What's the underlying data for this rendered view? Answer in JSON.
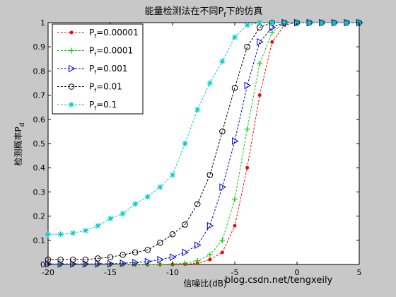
{
  "chart_data": {
    "type": "line",
    "title": "能量检测法在不同Pf下的仿真",
    "title_main": "能量检测法在不同P",
    "title_sub": "f",
    "title_rest": "下的仿真",
    "xlabel": "信噪比(dB)",
    "ylabel_main": "检测概率P",
    "ylabel_sub": "d",
    "xlim": [
      -20,
      5
    ],
    "ylim": [
      0,
      1
    ],
    "xticks": [
      -20,
      -15,
      -10,
      -5,
      0,
      5
    ],
    "yticks": [
      0,
      0.1,
      0.2,
      0.3,
      0.4,
      0.5,
      0.6,
      0.7,
      0.8,
      0.9,
      1
    ],
    "grid": false,
    "legend_position": "top-left",
    "x": [
      -20,
      -19,
      -18,
      -17,
      -16,
      -15,
      -14,
      -13,
      -12,
      -11,
      -10,
      -9,
      -8,
      -7,
      -6,
      -5,
      -4,
      -3,
      -2,
      -1,
      0,
      1,
      2,
      3,
      4,
      5
    ],
    "series": [
      {
        "name": "Pf=0.00001",
        "legend_prefix": "P",
        "legend_sub": "f",
        "legend_value": "=0.00001",
        "color": "#ff0000",
        "marker": "dot",
        "values": [
          0,
          0,
          0,
          0,
          0,
          0,
          0,
          0,
          0,
          0,
          0,
          0.001,
          0.005,
          0.02,
          0.05,
          0.16,
          0.4,
          0.7,
          0.92,
          0.99,
          1,
          1,
          1,
          1,
          1,
          1
        ]
      },
      {
        "name": "Pf=0.0001",
        "legend_prefix": "P",
        "legend_sub": "f",
        "legend_value": "=0.0001",
        "color": "#00cc00",
        "marker": "plus",
        "values": [
          0,
          0,
          0,
          0,
          0,
          0,
          0,
          0,
          0,
          0,
          0.002,
          0.005,
          0.015,
          0.04,
          0.1,
          0.27,
          0.56,
          0.83,
          0.96,
          1,
          1,
          1,
          1,
          1,
          1,
          1
        ]
      },
      {
        "name": "Pf=0.001",
        "legend_prefix": "P",
        "legend_sub": "f",
        "legend_value": "=0.001",
        "color": "#0000cc",
        "marker": "triangle-right",
        "values": [
          0.002,
          0.002,
          0.002,
          0.002,
          0.003,
          0.003,
          0.005,
          0.008,
          0.012,
          0.02,
          0.03,
          0.05,
          0.08,
          0.16,
          0.32,
          0.51,
          0.74,
          0.92,
          0.98,
          1,
          1,
          1,
          1,
          1,
          1,
          1
        ]
      },
      {
        "name": "Pf=0.01",
        "legend_prefix": "P",
        "legend_sub": "f",
        "legend_value": "=0.01",
        "color": "#000000",
        "marker": "circle",
        "values": [
          0.02,
          0.02,
          0.02,
          0.02,
          0.025,
          0.03,
          0.04,
          0.05,
          0.06,
          0.09,
          0.125,
          0.165,
          0.25,
          0.37,
          0.55,
          0.73,
          0.9,
          0.98,
          1,
          1,
          1,
          1,
          1,
          1,
          1,
          1
        ]
      },
      {
        "name": "Pf=0.1",
        "legend_prefix": "P",
        "legend_sub": "f",
        "legend_value": "=0.1",
        "color": "#00cccc",
        "marker": "star",
        "values": [
          0.125,
          0.125,
          0.13,
          0.14,
          0.16,
          0.19,
          0.21,
          0.25,
          0.28,
          0.32,
          0.37,
          0.5,
          0.64,
          0.75,
          0.84,
          0.94,
          0.99,
          1,
          1,
          1,
          1,
          1,
          1,
          1,
          1,
          1
        ]
      }
    ]
  },
  "watermark": "blog.csdn.net/tengxeily"
}
